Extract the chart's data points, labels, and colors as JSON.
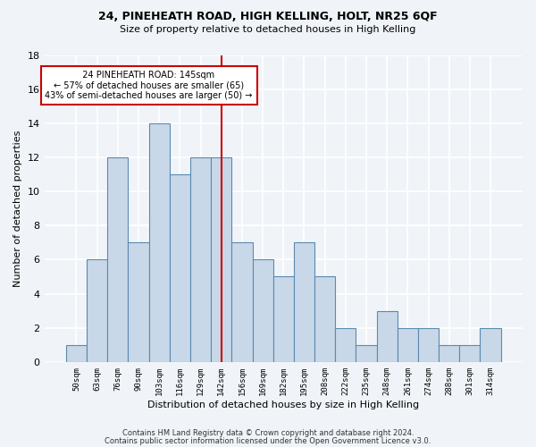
{
  "title1": "24, PINEHEATH ROAD, HIGH KELLING, HOLT, NR25 6QF",
  "title2": "Size of property relative to detached houses in High Kelling",
  "xlabel": "Distribution of detached houses by size in High Kelling",
  "ylabel": "Number of detached properties",
  "footnote1": "Contains HM Land Registry data © Crown copyright and database right 2024.",
  "footnote2": "Contains public sector information licensed under the Open Government Licence v3.0.",
  "categories": [
    "50sqm",
    "63sqm",
    "76sqm",
    "90sqm",
    "103sqm",
    "116sqm",
    "129sqm",
    "142sqm",
    "156sqm",
    "169sqm",
    "182sqm",
    "195sqm",
    "208sqm",
    "222sqm",
    "235sqm",
    "248sqm",
    "261sqm",
    "274sqm",
    "288sqm",
    "301sqm",
    "314sqm"
  ],
  "values": [
    1,
    6,
    12,
    7,
    14,
    11,
    12,
    12,
    7,
    6,
    5,
    7,
    5,
    2,
    1,
    3,
    2,
    2,
    1,
    1,
    2
  ],
  "bar_color": "#c8d8e8",
  "bar_edge_color": "#5a8ab0",
  "background_color": "#f0f4f8",
  "grid_color": "#ffffff",
  "ref_line_x": 7,
  "ref_line_label": "24 PINEHEATH ROAD: 145sqm",
  "smaller_pct": "57% of detached houses are smaller (65)",
  "larger_pct": "43% of semi-detached houses are larger (50)",
  "annotation_box_color": "#cc0000",
  "ylim": [
    0,
    18
  ],
  "yticks": [
    0,
    2,
    4,
    6,
    8,
    10,
    12,
    14,
    16,
    18
  ]
}
